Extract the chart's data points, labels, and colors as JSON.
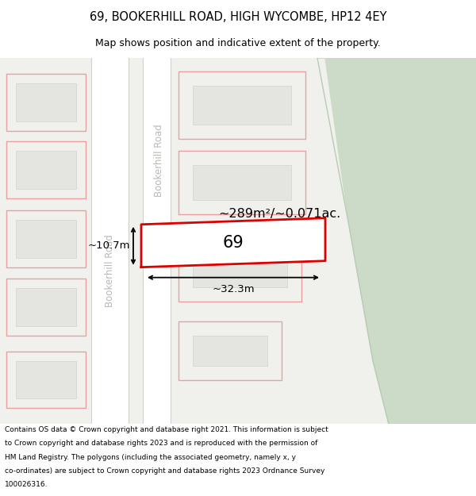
{
  "title": "69, BOOKERHILL ROAD, HIGH WYCOMBE, HP12 4EY",
  "subtitle": "Map shows position and indicative extent of the property.",
  "footnote": "Contains OS data © Crown copyright and database right 2021. This information is subject to Crown copyright and database rights 2023 and is reproduced with the permission of HM Land Registry. The polygons (including the associated geometry, namely x, y co-ordinates) are subject to Crown copyright and database rights 2023 Ordnance Survey 100026316.",
  "bg_color": "#f0f0ec",
  "road_color": "#ffffff",
  "plot_fill": "#f0f0ec",
  "plot_edge": "#e8a0a0",
  "building_fill": "#e4e4e0",
  "building_edge": "#d8d8d4",
  "highlight_fill": "#ffffff",
  "highlight_edge": "#dd0000",
  "green_fill": "#ccdbc8",
  "green_edge": "#b8ccb4",
  "road_label_color": "#b8b8b4",
  "dim_color": "#000000",
  "area_text": "~289m²/~0.071ac.",
  "number_text": "69",
  "width_label": "~32.3m",
  "height_label": "~10.7m",
  "road_label": "Bookerhill Road",
  "title_fontsize": 10.5,
  "subtitle_fontsize": 9,
  "footnote_fontsize": 6.5
}
